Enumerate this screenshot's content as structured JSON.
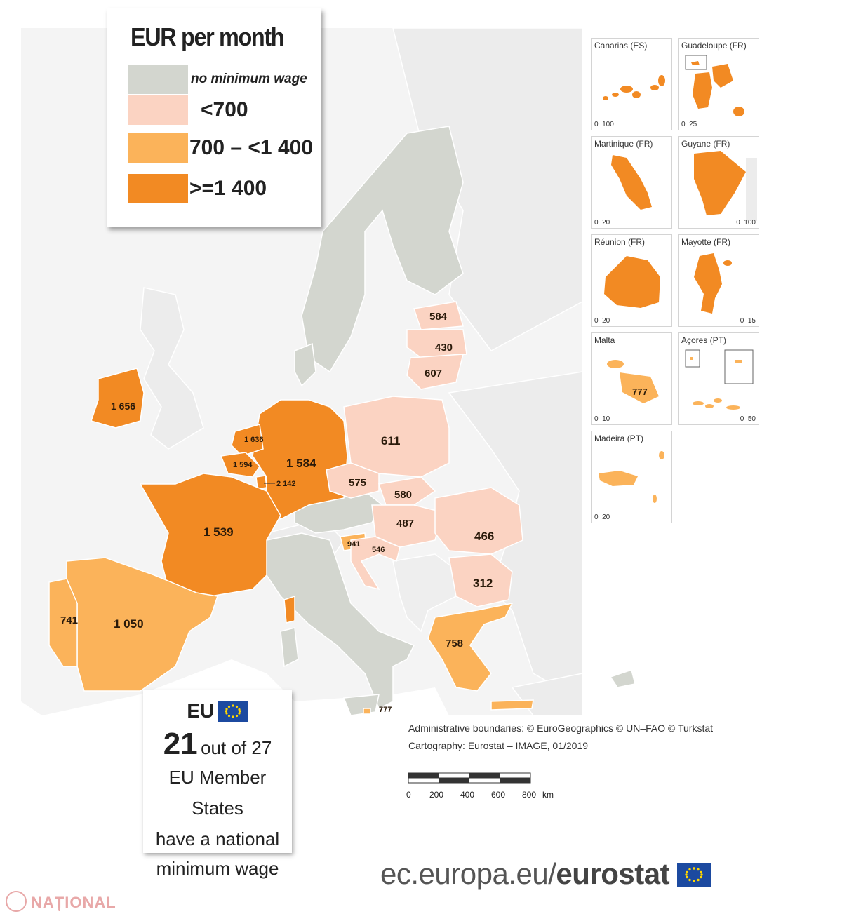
{
  "legend": {
    "title": "EUR per month",
    "items": [
      {
        "label": "no minimum wage",
        "color": "#d3d6cf"
      },
      {
        "label": "<700",
        "color": "#fbd3c2"
      },
      {
        "label": "700 – <1 400",
        "color": "#fbb35a"
      },
      {
        "label": ">=1 400",
        "color": "#f28a23"
      }
    ]
  },
  "colors": {
    "sea": "#ffffff",
    "non_eu_land": "#ececec",
    "no_min_wage": "#d3d6cf",
    "low": "#fbd3c2",
    "mid": "#fbb35a",
    "high": "#f28a23"
  },
  "country_values": {
    "ireland": "1 656",
    "netherlands": "1 636",
    "belgium": "1 594",
    "luxembourg": "2 142",
    "germany": "1 584",
    "france": "1 539",
    "spain": "1 050",
    "portugal": "741",
    "poland": "611",
    "czechia": "575",
    "slovakia": "580",
    "hungary": "487",
    "slovenia": "941",
    "croatia": "546",
    "romania": "466",
    "bulgaria": "312",
    "greece": "758",
    "malta": "777",
    "estonia": "584",
    "latvia": "430",
    "lithuania": "607"
  },
  "insets": [
    {
      "title": "Canarias (ES)",
      "scale_left": "0",
      "scale_right": "100",
      "scale_mode": "left"
    },
    {
      "title": "Guadeloupe (FR)",
      "scale_left": "0",
      "scale_right": "25",
      "scale_mode": "left"
    },
    {
      "title": "Martinique (FR)",
      "scale_left": "0",
      "scale_right": "20",
      "scale_mode": "left"
    },
    {
      "title": "Guyane (FR)",
      "scale_left": "0",
      "scale_right": "100",
      "scale_mode": "right"
    },
    {
      "title": "Réunion (FR)",
      "scale_left": "0",
      "scale_right": "20",
      "scale_mode": "left"
    },
    {
      "title": "Mayotte (FR)",
      "scale_left": "0",
      "scale_right": "15",
      "scale_mode": "right"
    },
    {
      "title": "Malta",
      "scale_left": "0",
      "scale_right": "10",
      "scale_mode": "left",
      "value": "777"
    },
    {
      "title": "Açores (PT)",
      "scale_left": "0",
      "scale_right": "50",
      "scale_mode": "right"
    },
    {
      "title": "Madeira (PT)",
      "scale_left": "0",
      "scale_right": "20",
      "scale_mode": "left"
    }
  ],
  "eu_box": {
    "eu_label": "EU",
    "count": "21",
    "count_suffix": "out of 27",
    "line2": "EU Member States",
    "line3": "have a national",
    "line4": "minimum wage"
  },
  "credits": {
    "line1": "Administrative boundaries: © EuroGeographics © UN–FAO © Turkstat",
    "line2": "Cartography: Eurostat – IMAGE, 01/2019"
  },
  "scalebar": {
    "labels": [
      "0",
      "200",
      "400",
      "600",
      "800"
    ],
    "unit": "km"
  },
  "footer": {
    "url_prefix": "ec.europa.eu/",
    "url_brand": "eurostat"
  },
  "watermark": "NAȚIONAL"
}
